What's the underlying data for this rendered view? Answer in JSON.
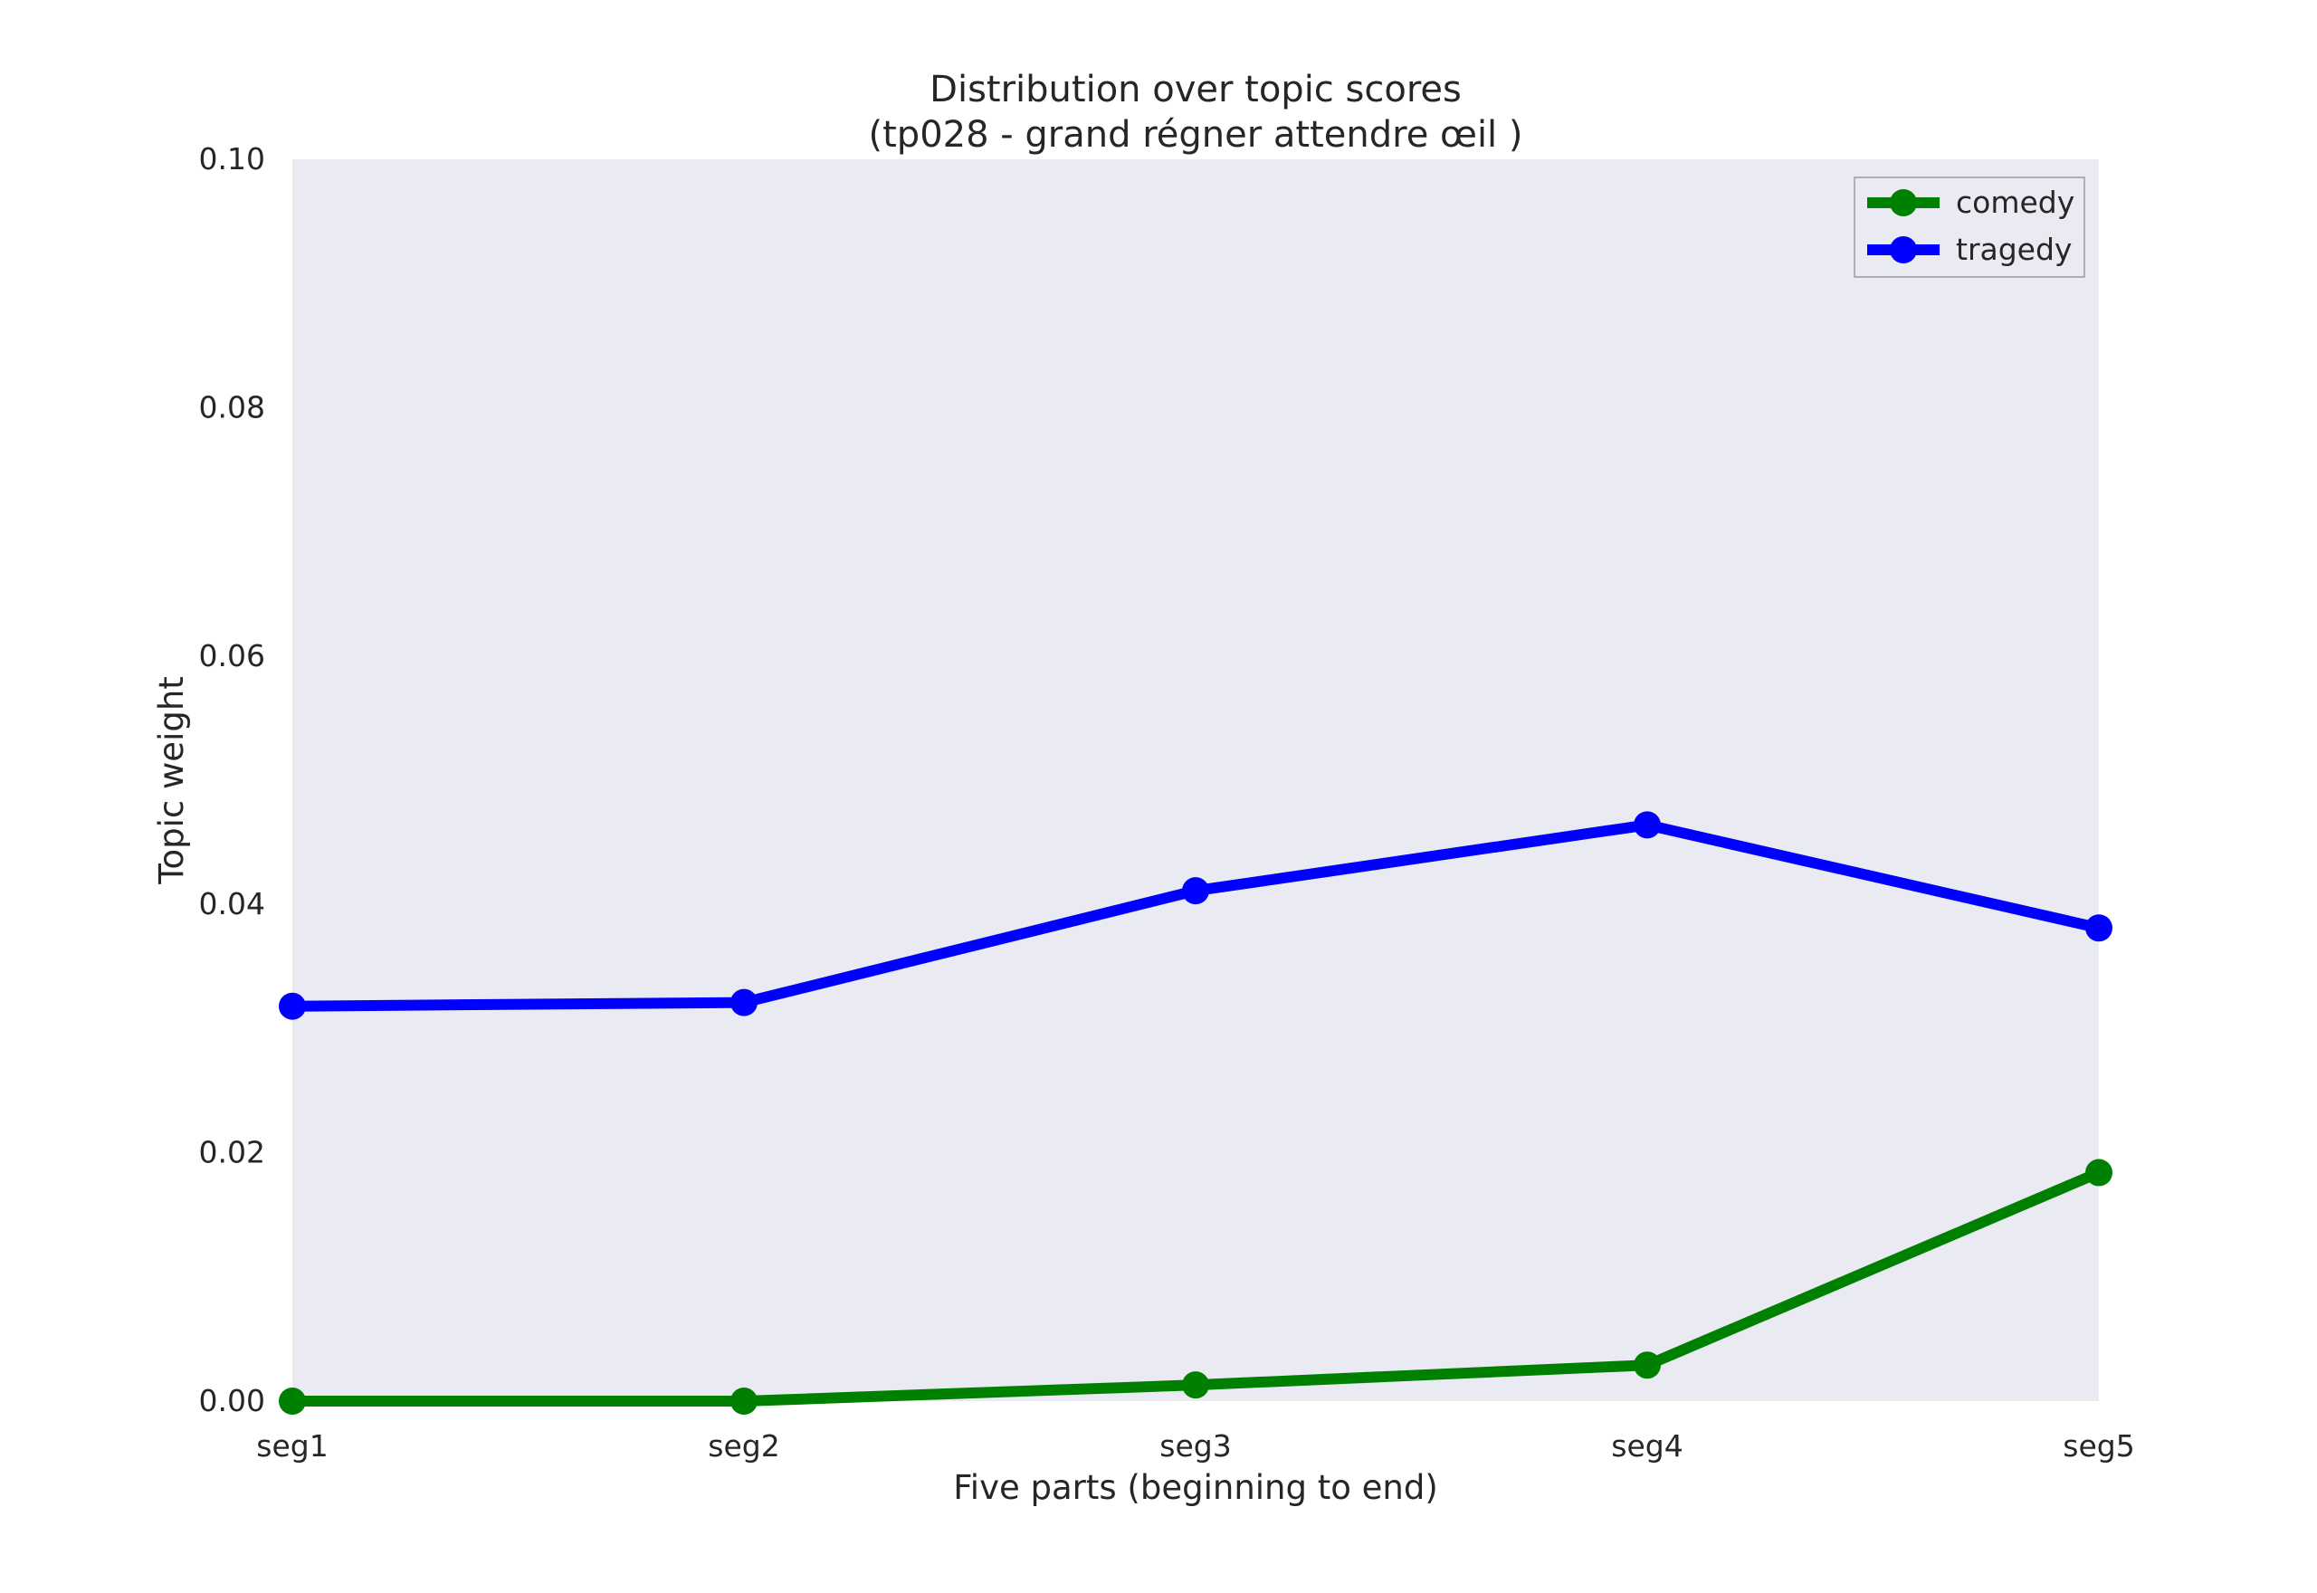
{
  "chart_data": {
    "type": "line",
    "title": "Distribution over topic scores",
    "subtitle": "(tp028 - grand régner attendre œil )",
    "xlabel": "Five parts (beginning to end)",
    "ylabel": "Topic weight",
    "categories": [
      "seg1",
      "seg2",
      "seg3",
      "seg4",
      "seg5"
    ],
    "ylim": [
      0.0,
      0.1
    ],
    "yticks": [
      "0.00",
      "0.02",
      "0.04",
      "0.06",
      "0.08",
      "0.10"
    ],
    "grid": false,
    "legend_position": "top-right",
    "series": [
      {
        "name": "comedy",
        "color": "#008000",
        "values": [
          0.0,
          0.0,
          0.0013,
          0.0029,
          0.0184
        ]
      },
      {
        "name": "tragedy",
        "color": "#0000ff",
        "values": [
          0.0318,
          0.0321,
          0.0411,
          0.0464,
          0.0381
        ]
      }
    ],
    "plot_background": "#eaeaf2"
  }
}
